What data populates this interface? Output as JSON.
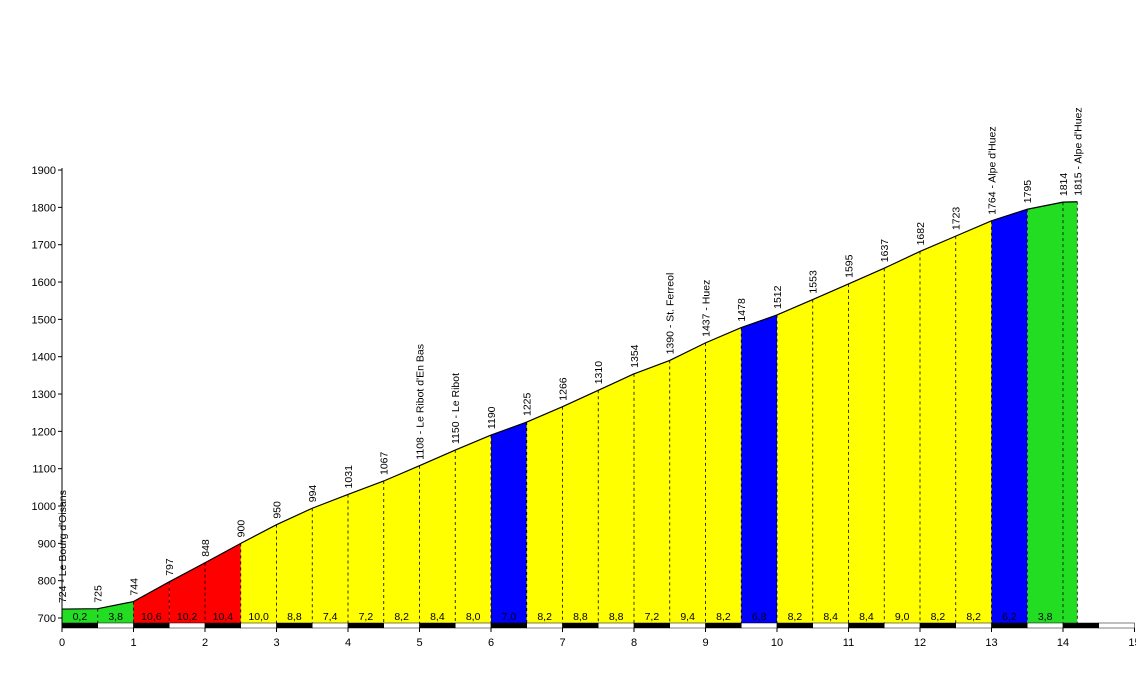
{
  "chart_data": {
    "type": "area",
    "xlabel": "",
    "ylabel": "",
    "xlim": [
      0,
      15
    ],
    "ylim": [
      700,
      1900
    ],
    "x_ticks": [
      "0",
      "1",
      "2",
      "3",
      "4",
      "5",
      "6",
      "7",
      "8",
      "9",
      "10",
      "11",
      "12",
      "13",
      "14",
      "15"
    ],
    "y_ticks": [
      "700",
      "800",
      "900",
      "1000",
      "1100",
      "1200",
      "1300",
      "1400",
      "1500",
      "1600",
      "1700",
      "1800",
      "1900"
    ],
    "profile": [
      {
        "km": 0,
        "elev": 724,
        "label": "724 - Le Bourg d'Oisans"
      },
      {
        "km": 0.5,
        "elev": 725,
        "label": "725"
      },
      {
        "km": 1,
        "elev": 744,
        "label": "744"
      },
      {
        "km": 1.5,
        "elev": 797,
        "label": "797"
      },
      {
        "km": 2,
        "elev": 848,
        "label": "848"
      },
      {
        "km": 2.5,
        "elev": 900,
        "label": "900"
      },
      {
        "km": 3,
        "elev": 950,
        "label": "950"
      },
      {
        "km": 3.5,
        "elev": 994,
        "label": "994"
      },
      {
        "km": 4,
        "elev": 1031,
        "label": "1031"
      },
      {
        "km": 4.5,
        "elev": 1067,
        "label": "1067"
      },
      {
        "km": 5,
        "elev": 1108,
        "label": "1108 - Le Ribot d'En Bas"
      },
      {
        "km": 5.5,
        "elev": 1150,
        "label": "1150 - Le Ribot"
      },
      {
        "km": 6,
        "elev": 1190,
        "label": "1190"
      },
      {
        "km": 6.5,
        "elev": 1225,
        "label": "1225"
      },
      {
        "km": 7,
        "elev": 1266,
        "label": "1266"
      },
      {
        "km": 7.5,
        "elev": 1310,
        "label": "1310"
      },
      {
        "km": 8,
        "elev": 1354,
        "label": "1354"
      },
      {
        "km": 8.5,
        "elev": 1390,
        "label": "1390 - St. Ferreol"
      },
      {
        "km": 9,
        "elev": 1437,
        "label": "1437 - Huez"
      },
      {
        "km": 9.5,
        "elev": 1478,
        "label": "1478"
      },
      {
        "km": 10,
        "elev": 1512,
        "label": "1512"
      },
      {
        "km": 10.5,
        "elev": 1553,
        "label": "1553"
      },
      {
        "km": 11,
        "elev": 1595,
        "label": "1595"
      },
      {
        "km": 11.5,
        "elev": 1637,
        "label": "1637"
      },
      {
        "km": 12,
        "elev": 1682,
        "label": "1682"
      },
      {
        "km": 12.5,
        "elev": 1723,
        "label": "1723"
      },
      {
        "km": 13,
        "elev": 1764,
        "label": "1764 - Alpe d'Huez"
      },
      {
        "km": 13.5,
        "elev": 1795,
        "label": "1795"
      },
      {
        "km": 14,
        "elev": 1814,
        "label": "1814"
      },
      {
        "km": 14.2,
        "elev": 1815,
        "label": "1815 - Alpe d'Huez"
      }
    ],
    "segments": [
      {
        "start": 0,
        "end": 0.5,
        "gradient": "0,2",
        "color": "#22dd22"
      },
      {
        "start": 0.5,
        "end": 1,
        "gradient": "3,8",
        "color": "#22dd22"
      },
      {
        "start": 1,
        "end": 1.5,
        "gradient": "10,6",
        "color": "#ff0000"
      },
      {
        "start": 1.5,
        "end": 2,
        "gradient": "10,2",
        "color": "#ff0000"
      },
      {
        "start": 2,
        "end": 2.5,
        "gradient": "10,4",
        "color": "#ff0000"
      },
      {
        "start": 2.5,
        "end": 3,
        "gradient": "10,0",
        "color": "#ffff00"
      },
      {
        "start": 3,
        "end": 3.5,
        "gradient": "8,8",
        "color": "#ffff00"
      },
      {
        "start": 3.5,
        "end": 4,
        "gradient": "7,4",
        "color": "#ffff00"
      },
      {
        "start": 4,
        "end": 4.5,
        "gradient": "7,2",
        "color": "#ffff00"
      },
      {
        "start": 4.5,
        "end": 5,
        "gradient": "8,2",
        "color": "#ffff00"
      },
      {
        "start": 5,
        "end": 5.5,
        "gradient": "8,4",
        "color": "#ffff00"
      },
      {
        "start": 5.5,
        "end": 6,
        "gradient": "8,0",
        "color": "#ffff00"
      },
      {
        "start": 6,
        "end": 6.5,
        "gradient": "7,0",
        "color": "#0000ff"
      },
      {
        "start": 6.5,
        "end": 7,
        "gradient": "8,2",
        "color": "#ffff00"
      },
      {
        "start": 7,
        "end": 7.5,
        "gradient": "8,8",
        "color": "#ffff00"
      },
      {
        "start": 7.5,
        "end": 8,
        "gradient": "8,8",
        "color": "#ffff00"
      },
      {
        "start": 8,
        "end": 8.5,
        "gradient": "7,2",
        "color": "#ffff00"
      },
      {
        "start": 8.5,
        "end": 9,
        "gradient": "9,4",
        "color": "#ffff00"
      },
      {
        "start": 9,
        "end": 9.5,
        "gradient": "8,2",
        "color": "#ffff00"
      },
      {
        "start": 9.5,
        "end": 10,
        "gradient": "6,8",
        "color": "#0000ff"
      },
      {
        "start": 10,
        "end": 10.5,
        "gradient": "8,2",
        "color": "#ffff00"
      },
      {
        "start": 10.5,
        "end": 11,
        "gradient": "8,4",
        "color": "#ffff00"
      },
      {
        "start": 11,
        "end": 11.5,
        "gradient": "8,4",
        "color": "#ffff00"
      },
      {
        "start": 11.5,
        "end": 12,
        "gradient": "9,0",
        "color": "#ffff00"
      },
      {
        "start": 12,
        "end": 12.5,
        "gradient": "8,2",
        "color": "#ffff00"
      },
      {
        "start": 12.5,
        "end": 13,
        "gradient": "8,2",
        "color": "#ffff00"
      },
      {
        "start": 13,
        "end": 13.5,
        "gradient": "6,2",
        "color": "#0000ff"
      },
      {
        "start": 13.5,
        "end": 14,
        "gradient": "3,8",
        "color": "#22dd22"
      },
      {
        "start": 14,
        "end": 14.2,
        "gradient": "",
        "color": "#22dd22"
      }
    ]
  }
}
